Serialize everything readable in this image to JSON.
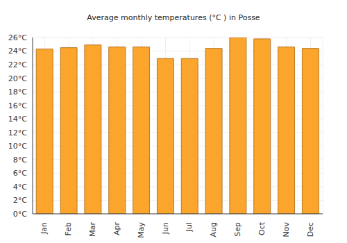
{
  "chart_data": {
    "type": "bar",
    "title": "Average monthly temperatures (°C ) in Posse",
    "categories": [
      "Jan",
      "Feb",
      "Mar",
      "Apr",
      "May",
      "Jun",
      "Jul",
      "Aug",
      "Sep",
      "Oct",
      "Nov",
      "Dec"
    ],
    "values": [
      24.3,
      24.5,
      24.9,
      24.6,
      24.6,
      22.9,
      22.9,
      24.4,
      26.0,
      25.8,
      24.6,
      24.4
    ],
    "color": "#fba52c",
    "ylim": [
      0,
      26
    ],
    "yticks": [
      {
        "value": 0,
        "label": "0°C"
      },
      {
        "value": 2,
        "label": "2°C"
      },
      {
        "value": 4,
        "label": "4°C"
      },
      {
        "value": 6,
        "label": "6°C"
      },
      {
        "value": 8,
        "label": "8°C"
      },
      {
        "value": 10,
        "label": "10°C"
      },
      {
        "value": 12,
        "label": "12°C"
      },
      {
        "value": 14,
        "label": "14°C"
      },
      {
        "value": 16,
        "label": "16°C"
      },
      {
        "value": 18,
        "label": "18°C"
      },
      {
        "value": 20,
        "label": "20°C"
      },
      {
        "value": 22,
        "label": "22°C"
      },
      {
        "value": 24,
        "label": "24°C"
      },
      {
        "value": 26,
        "label": "26°C"
      }
    ],
    "grid": true
  }
}
